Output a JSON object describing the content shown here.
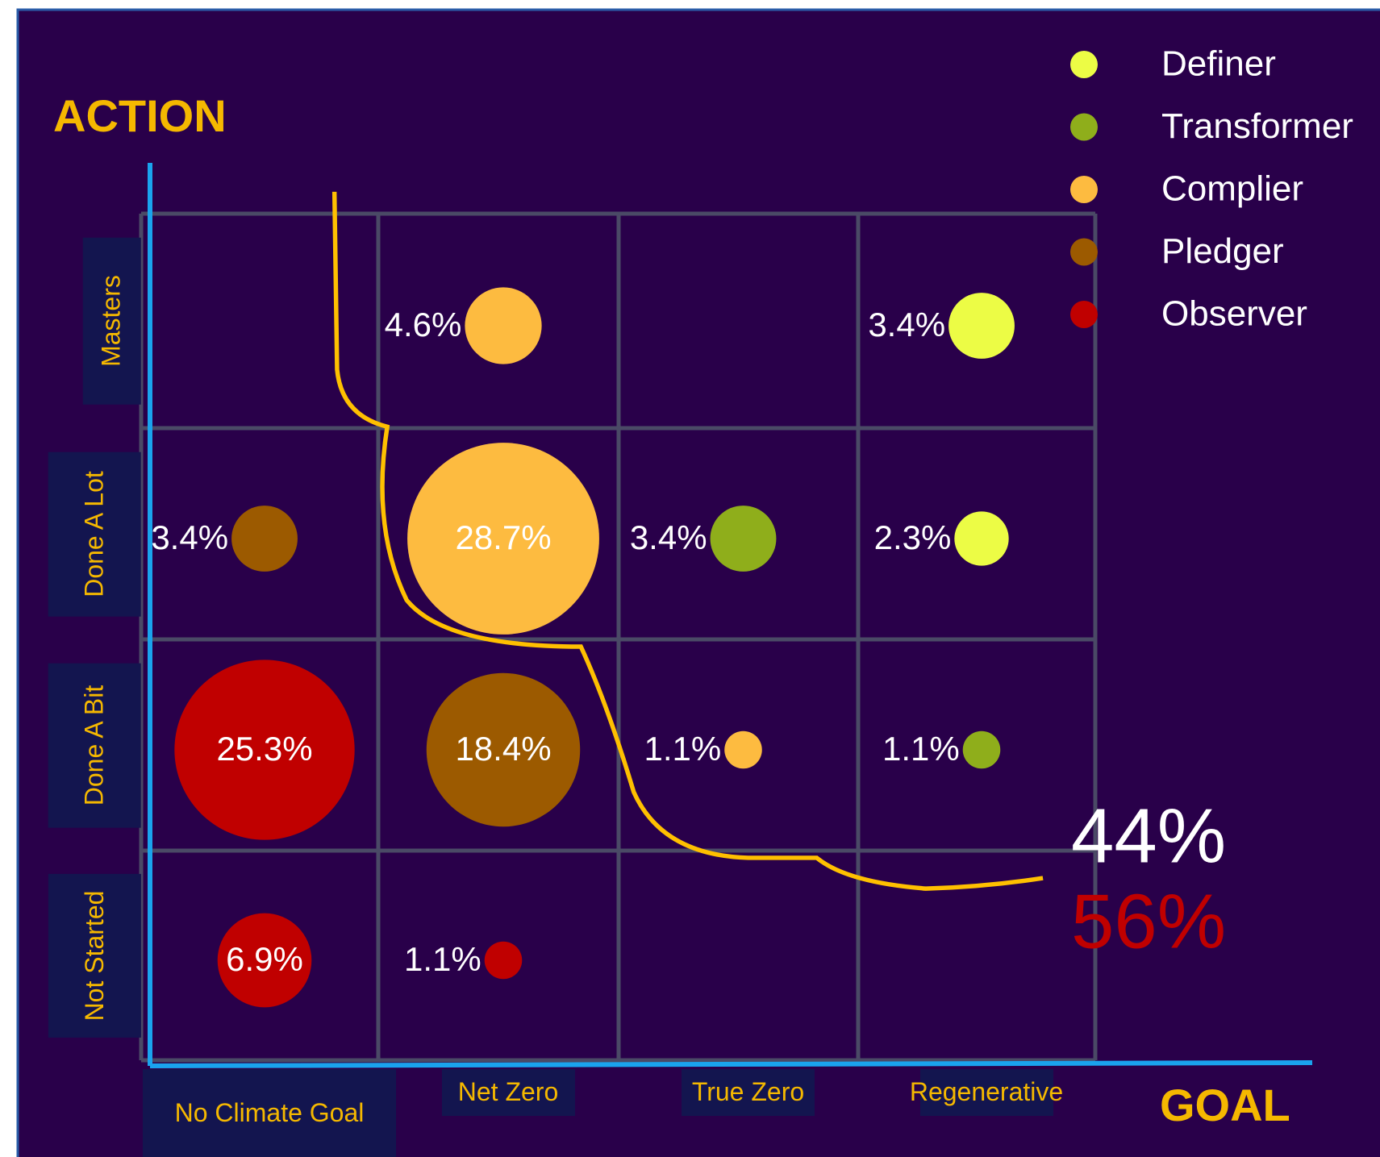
{
  "chart_data": {
    "type": "bubble-grid",
    "title": "ACTION",
    "x_label": "GOAL",
    "categories": [
      "No Climate Goal",
      "Net Zero",
      "True Zero",
      "Regenerative"
    ],
    "rows": [
      "Masters",
      "Done A Lot",
      "Done A Bit",
      "Not Started"
    ],
    "series": [
      {
        "name": "Definer",
        "color": "#ecfc45",
        "x": [
          "Regenerative",
          "Regenerative"
        ],
        "y": [
          "Masters",
          "Done A Lot"
        ],
        "values": [
          3.4,
          2.3
        ],
        "value_labels": [
          "3.4%",
          "2.3%"
        ]
      },
      {
        "name": "Transformer",
        "color": "#8fae1b",
        "x": [
          "True Zero",
          "Regenerative"
        ],
        "y": [
          "Done A Lot",
          "Done A Bit"
        ],
        "values": [
          3.4,
          1.1
        ],
        "value_labels": [
          "3.4%",
          "1.1%"
        ]
      },
      {
        "name": "Complier",
        "color": "#fdbb40",
        "x": [
          "Net Zero",
          "Net Zero",
          "True Zero"
        ],
        "y": [
          "Masters",
          "Done A Lot",
          "Done A Bit"
        ],
        "values": [
          4.6,
          28.7,
          1.1
        ],
        "value_labels": [
          "4.6%",
          "28.7%",
          "1.1%"
        ]
      },
      {
        "name": "Pledger",
        "color": "#9c5a00",
        "x": [
          "No Climate Goal",
          "Net Zero"
        ],
        "y": [
          "Done A Lot",
          "Done A Bit"
        ],
        "values": [
          3.4,
          18.4
        ],
        "value_labels": [
          "3.4%",
          "18.4%"
        ]
      },
      {
        "name": "Observer",
        "color": "#c00000",
        "x": [
          "No Climate Goal",
          "No Climate Goal",
          "Net Zero"
        ],
        "y": [
          "Done A Bit",
          "Not Started",
          "Not Started"
        ],
        "values": [
          25.3,
          6.9,
          1.1
        ],
        "value_labels": [
          "25.3%",
          "6.9%",
          "1.1%"
        ]
      }
    ],
    "annotations": [
      {
        "text": "44%",
        "color": "#ffffff"
      },
      {
        "text": "56%",
        "color": "#c00000"
      }
    ]
  }
}
